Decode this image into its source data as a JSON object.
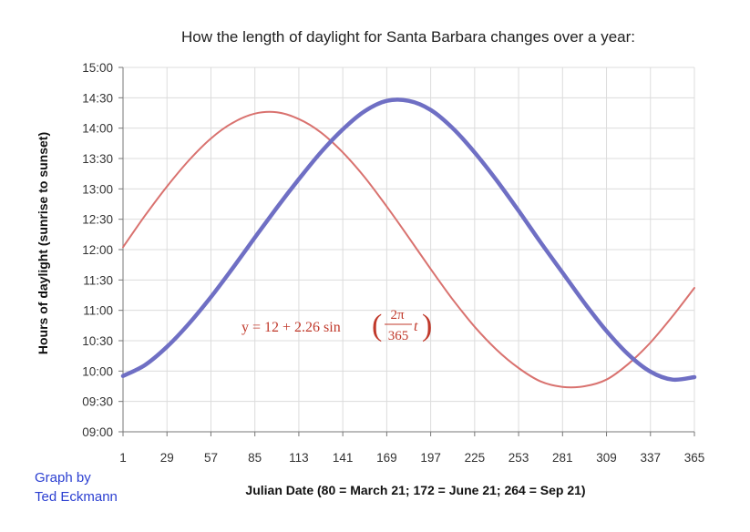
{
  "chart_data": {
    "type": "line",
    "title": "How the length of daylight for Santa Barbara changes over a year:",
    "xlabel": "Julian Date (80 = March 21; 172 = June 21; 264 = Sep 21)",
    "ylabel": "Hours of daylight (sunrise to sunset)",
    "xlim": [
      1,
      365
    ],
    "ylim": [
      9,
      15
    ],
    "x_ticks": [
      "1",
      "29",
      "57",
      "85",
      "113",
      "141",
      "169",
      "197",
      "225",
      "253",
      "281",
      "309",
      "337",
      "365"
    ],
    "y_ticks": [
      "09:00",
      "09:30",
      "10:00",
      "10:30",
      "11:00",
      "11:30",
      "12:00",
      "12:30",
      "13:00",
      "13:30",
      "14:00",
      "14:30",
      "15:00"
    ],
    "grid": true,
    "series": [
      {
        "color": "#d9726f",
        "x": [
          1,
          15,
          29,
          43,
          57,
          71,
          85,
          99,
          113,
          127,
          141,
          155,
          169,
          183,
          197,
          211,
          225,
          239,
          253,
          267,
          281,
          295,
          309,
          323,
          337,
          351,
          365
        ],
        "y": [
          12.04,
          12.56,
          13.04,
          13.47,
          13.83,
          14.09,
          14.24,
          14.26,
          14.15,
          13.93,
          13.6,
          13.19,
          12.71,
          12.2,
          11.68,
          11.18,
          10.73,
          10.35,
          10.05,
          9.83,
          9.74,
          9.75,
          9.86,
          10.12,
          10.47,
          10.9,
          11.37
        ]
      },
      {
        "color": "#6f6fc4",
        "x": [
          1,
          15,
          29,
          43,
          57,
          71,
          85,
          99,
          113,
          127,
          141,
          155,
          169,
          183,
          197,
          211,
          225,
          239,
          253,
          267,
          281,
          295,
          309,
          323,
          337,
          351,
          365
        ],
        "y": [
          9.92,
          10.1,
          10.4,
          10.78,
          11.22,
          11.7,
          12.2,
          12.69,
          13.16,
          13.6,
          13.98,
          14.28,
          14.45,
          14.45,
          14.3,
          14.0,
          13.6,
          13.14,
          12.64,
          12.12,
          11.62,
          11.12,
          10.66,
          10.27,
          9.99,
          9.86,
          9.9
        ]
      }
    ],
    "annotation": {
      "prefix": "y = 12 + 2.26 sin",
      "numerator": "2π",
      "denominator": "365",
      "suffix": "t"
    }
  },
  "credit": {
    "line1": "Graph by",
    "line2": "Ted Eckmann"
  }
}
